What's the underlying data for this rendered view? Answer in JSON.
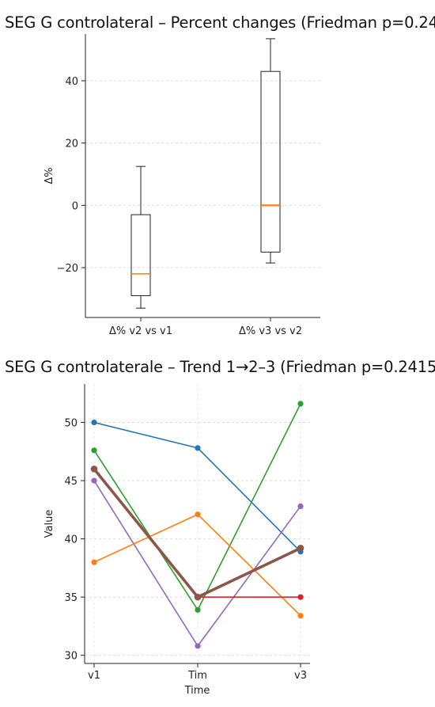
{
  "chart_data": [
    {
      "type": "box",
      "title": "SEG G controlateral  – Percent changes (Friedman p=0.24",
      "xlabel": "",
      "ylabel": "Δ%",
      "ylim": [
        -36,
        55
      ],
      "yticks": [
        -20,
        0,
        20,
        40
      ],
      "grid": true,
      "categories": [
        "Δ% v2 vs v1",
        "Δ% v3 vs v2"
      ],
      "boxes": [
        {
          "whisker_low": -33,
          "q1": -29,
          "median": -22,
          "q3": -3,
          "whisker_high": 12.5
        },
        {
          "whisker_low": -18.5,
          "q1": -15,
          "median": 0,
          "q3": 43,
          "whisker_high": 53.5
        }
      ],
      "colors": {
        "median": "#ff7f0e",
        "box": "#222222"
      }
    },
    {
      "type": "line",
      "title": "SEG G controlaterale – Trend 1→2–3 (Friedman p=0.2415",
      "xlabel": "Time",
      "ylabel": "Value",
      "ylim": [
        29.3,
        53.3
      ],
      "yticks": [
        30,
        35,
        40,
        45,
        50
      ],
      "grid": true,
      "categories": [
        "v1",
        "Tim",
        "v3"
      ],
      "series": [
        {
          "color": "#1f77b4",
          "values": [
            50.0,
            47.8,
            38.9
          ]
        },
        {
          "color": "#2ca02c",
          "values": [
            47.6,
            33.9,
            51.6
          ]
        },
        {
          "color": "#9467bd",
          "values": [
            45.0,
            30.8,
            42.8
          ]
        },
        {
          "color": "#ff7f0e",
          "values": [
            38.0,
            42.1,
            33.4
          ]
        },
        {
          "color": "#d62728",
          "values": [
            null,
            35.0,
            35.0
          ]
        },
        {
          "color": "#8c564b",
          "values": [
            46.0,
            35.0,
            39.2
          ],
          "bold": true
        }
      ]
    }
  ]
}
